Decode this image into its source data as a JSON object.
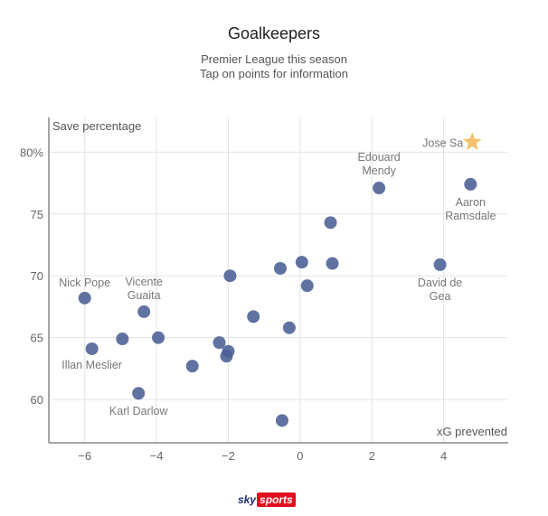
{
  "header": {
    "title": "Goalkeepers",
    "subtitle_line1": "Premier League this season",
    "subtitle_line2": "Tap on points for information"
  },
  "logo": {
    "sky": "sky",
    "sports": "sports"
  },
  "colors": {
    "point": "#4a5f94",
    "star": "#f5c26b",
    "grid": "#e3e3e3",
    "axis": "#888888",
    "label": "#777777"
  },
  "chart_data": {
    "type": "scatter",
    "xlabel": "xG prevented",
    "ylabel": "Save percentage",
    "xlim": [
      -7,
      5.8
    ],
    "ylim": [
      56.5,
      82.8
    ],
    "x_ticks": [
      -6,
      -4,
      -2,
      0,
      2,
      4
    ],
    "x_tick_labels": [
      "−6",
      "−4",
      "−2",
      "0",
      "2",
      "4"
    ],
    "y_ticks": [
      60,
      65,
      70,
      75,
      80
    ],
    "y_tick_labels": [
      "60",
      "65",
      "70",
      "75",
      "80%"
    ],
    "points": [
      {
        "x": 4.8,
        "y": 80.8,
        "label": "Jose Sa",
        "highlight": true
      },
      {
        "x": 2.2,
        "y": 77.1,
        "label": "Edouard Mendy"
      },
      {
        "x": 4.75,
        "y": 77.4,
        "label": "Aaron Ramsdale"
      },
      {
        "x": 3.9,
        "y": 70.9,
        "label": "David de Gea"
      },
      {
        "x": -6.0,
        "y": 68.2,
        "label": "Nick Pope"
      },
      {
        "x": -4.35,
        "y": 67.1,
        "label": "Vicente Guaita"
      },
      {
        "x": -5.8,
        "y": 64.1,
        "label": "Illan Meslier"
      },
      {
        "x": -4.5,
        "y": 60.5,
        "label": "Karl Darlow"
      },
      {
        "x": 0.85,
        "y": 74.3
      },
      {
        "x": 0.05,
        "y": 71.1
      },
      {
        "x": 0.9,
        "y": 71.0
      },
      {
        "x": -0.55,
        "y": 70.6
      },
      {
        "x": -1.95,
        "y": 70.0
      },
      {
        "x": 0.2,
        "y": 69.2
      },
      {
        "x": -1.3,
        "y": 66.7
      },
      {
        "x": -0.3,
        "y": 65.8
      },
      {
        "x": -4.95,
        "y": 64.9
      },
      {
        "x": -3.95,
        "y": 65.0
      },
      {
        "x": -2.25,
        "y": 64.6
      },
      {
        "x": -2.0,
        "y": 63.9
      },
      {
        "x": -2.05,
        "y": 63.5
      },
      {
        "x": -3.0,
        "y": 62.7
      },
      {
        "x": -0.5,
        "y": 58.3
      }
    ]
  }
}
